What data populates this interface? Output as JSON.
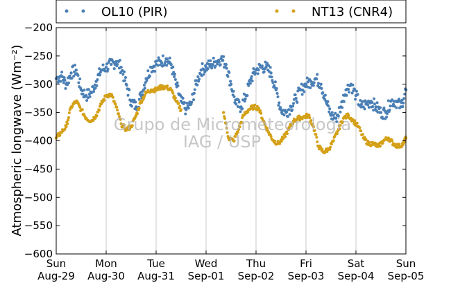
{
  "chart_data": {
    "type": "scatter",
    "ylabel": "Atmospheric longwave (Wm⁻²)",
    "ylim": [
      -600,
      -200
    ],
    "yticks": [
      -200,
      -250,
      -300,
      -350,
      -400,
      -450,
      -500,
      -550,
      -600
    ],
    "xlim": [
      0,
      7
    ],
    "xticks": [
      {
        "x": 0,
        "line1": "Sun",
        "line2": "Aug-29"
      },
      {
        "x": 1,
        "line1": "Mon",
        "line2": "Aug-30"
      },
      {
        "x": 2,
        "line1": "Tue",
        "line2": "Aug-31"
      },
      {
        "x": 3,
        "line1": "Wed",
        "line2": "Sep-01"
      },
      {
        "x": 4,
        "line1": "Thu",
        "line2": "Sep-02"
      },
      {
        "x": 5,
        "line1": "Fri",
        "line2": "Sep-03"
      },
      {
        "x": 6,
        "line1": "Sat",
        "line2": "Sep-04"
      },
      {
        "x": 7,
        "line1": "Sun",
        "line2": "Sep-05"
      }
    ],
    "grid": "vertical",
    "legend_position": "top",
    "watermark": [
      "Grupo de Micrometeorologia",
      "IAG / USP"
    ],
    "series": [
      {
        "name": "OL10 (PIR)",
        "color": "#4a7fb5",
        "x": [
          0.0,
          0.1,
          0.2,
          0.3,
          0.4,
          0.5,
          0.6,
          0.7,
          0.8,
          0.9,
          1.0,
          1.1,
          1.2,
          1.3,
          1.4,
          1.5,
          1.6,
          1.7,
          1.8,
          1.9,
          2.0,
          2.1,
          2.2,
          2.3,
          2.4,
          2.5,
          2.6,
          2.7,
          2.8,
          2.9,
          3.0,
          3.1,
          3.2,
          3.3,
          3.4,
          3.5,
          3.6,
          3.7,
          3.8,
          3.9,
          4.0,
          4.1,
          4.2,
          4.3,
          4.4,
          4.5,
          4.6,
          4.7,
          4.8,
          4.9,
          5.0,
          5.1,
          5.2,
          5.3,
          5.4,
          5.5,
          5.6,
          5.7,
          5.8,
          5.9,
          6.0,
          6.1,
          6.2,
          6.3,
          6.4,
          6.5,
          6.6,
          6.7,
          6.8,
          6.9,
          7.0
        ],
        "y": [
          -290,
          -285,
          -300,
          -280,
          -275,
          -310,
          -320,
          -315,
          -295,
          -275,
          -270,
          -265,
          -260,
          -270,
          -300,
          -330,
          -340,
          -320,
          -290,
          -270,
          -265,
          -260,
          -255,
          -265,
          -300,
          -330,
          -345,
          -335,
          -300,
          -275,
          -270,
          -265,
          -260,
          -255,
          -265,
          -300,
          -335,
          -340,
          -320,
          -290,
          -275,
          -270,
          -270,
          -280,
          -310,
          -345,
          -350,
          -340,
          -325,
          -310,
          -300,
          -295,
          -290,
          -300,
          -330,
          -355,
          -360,
          -340,
          -310,
          -300,
          -320,
          -340,
          -335,
          -330,
          -340,
          -350,
          -350,
          -330,
          -330,
          -340,
          -310
        ]
      },
      {
        "name": "NT13 (CNR4)",
        "color": "#d4a017",
        "x": [
          0.0,
          0.1,
          0.2,
          0.3,
          0.4,
          0.5,
          0.6,
          0.7,
          0.8,
          0.9,
          1.0,
          1.1,
          1.2,
          1.3,
          1.4,
          1.5,
          1.6,
          1.7,
          1.8,
          1.9,
          2.0,
          2.1,
          2.2,
          2.3,
          2.4,
          2.5,
          3.35,
          3.45,
          3.55,
          3.65,
          3.75,
          3.85,
          3.95,
          4.05,
          4.15,
          4.25,
          4.35,
          4.45,
          4.55,
          4.65,
          4.75,
          4.85,
          4.95,
          5.05,
          5.15,
          5.25,
          5.35,
          5.45,
          5.55,
          5.65,
          5.75,
          5.85,
          5.95,
          6.05,
          6.15,
          6.25,
          6.35,
          6.45,
          6.55,
          6.65,
          6.75,
          6.85,
          6.95,
          7.0
        ],
        "y": [
          -395,
          -385,
          -375,
          -340,
          -330,
          -345,
          -360,
          -365,
          -355,
          -335,
          -320,
          -318,
          -340,
          -370,
          -380,
          -375,
          -355,
          -330,
          -315,
          -310,
          -310,
          -305,
          -305,
          -310,
          -330,
          -345,
          -350,
          -395,
          -400,
          -380,
          -355,
          -345,
          -340,
          -342,
          -365,
          -385,
          -400,
          -405,
          -395,
          -380,
          -365,
          -360,
          -358,
          -355,
          -375,
          -410,
          -420,
          -415,
          -400,
          -380,
          -360,
          -355,
          -365,
          -375,
          -395,
          -405,
          -405,
          -410,
          -400,
          -395,
          -405,
          -410,
          -405,
          -395
        ]
      }
    ]
  }
}
